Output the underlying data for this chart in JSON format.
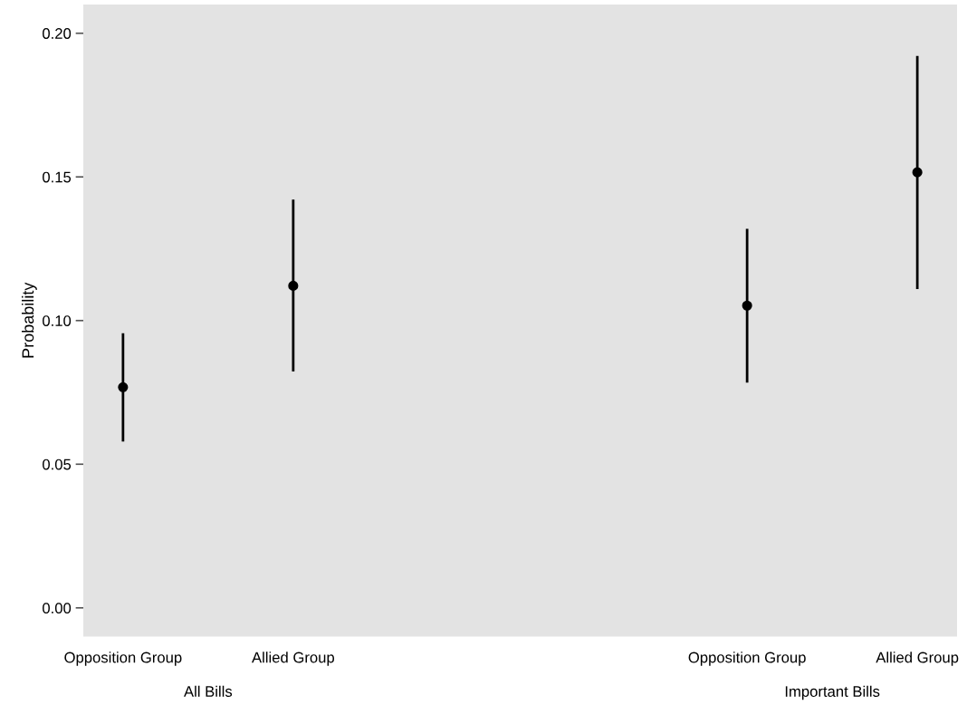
{
  "chart_data": {
    "type": "scatter",
    "ylabel": "Probability",
    "categories": [
      "Opposition Group",
      null,
      null,
      "Allied Group",
      null,
      null,
      null,
      null,
      null,
      null,
      null,
      "Opposition Group",
      null,
      null,
      "Allied Group"
    ],
    "values": [
      0.0768,
      null,
      null,
      0.1121,
      null,
      null,
      null,
      null,
      null,
      null,
      null,
      0.1052,
      null,
      null,
      0.1516
    ],
    "errors": [
      [
        0.0579,
        0.0956
      ],
      null,
      null,
      [
        0.0823,
        0.1421
      ],
      null,
      null,
      null,
      null,
      null,
      null,
      null,
      [
        0.0784,
        0.1319
      ],
      null,
      null,
      [
        0.111,
        0.1921
      ]
    ],
    "color": "#000000",
    "marker": "circle",
    "ylim": [
      -0.01,
      0.21
    ],
    "yticks": [
      {
        "value": 0,
        "label": "0.00"
      },
      0.05,
      {
        "value": 0.1,
        "label": "0.10"
      },
      0.15,
      {
        "value": 0.2,
        "label": "0.20"
      }
    ],
    "annotations": [
      "All Bills",
      "Important Bills"
    ],
    "grid": false,
    "legend": false
  }
}
